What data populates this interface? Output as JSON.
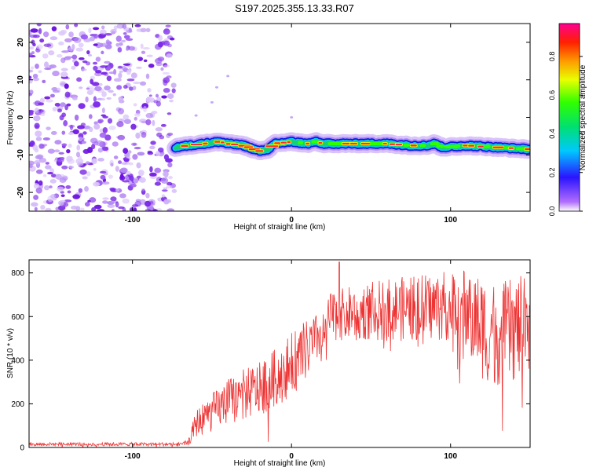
{
  "title": "S197.2025.355.13.33.R07",
  "chart_data": [
    {
      "type": "heatmap",
      "xlabel": "Height of straight line (km)",
      "ylabel": "Frequency (Hz)",
      "xlim": [
        -165,
        150
      ],
      "ylim": [
        -25,
        25
      ],
      "xticks": [
        -100,
        0,
        100
      ],
      "yticks": [
        -20,
        -10,
        0,
        10,
        20
      ],
      "noise_region_x": [
        -165,
        -73
      ],
      "noise_points_approx": 600,
      "signal_track": {
        "x": [
          -73,
          -65,
          -55,
          -45,
          -40,
          -30,
          -20,
          -15,
          -10,
          0,
          10,
          15,
          20,
          40,
          60,
          75,
          85,
          90,
          95,
          110,
          130,
          150
        ],
        "frequency": [
          -8,
          -7.5,
          -7,
          -6.5,
          -7,
          -7.5,
          -9,
          -8.5,
          -7,
          -6.5,
          -7,
          -6.5,
          -7,
          -7,
          -7,
          -7.5,
          -7.5,
          -7,
          -8,
          -7.5,
          -8,
          -8.5
        ]
      },
      "colorbar": {
        "label": "Normalized spectral amplitude",
        "ticks": [
          "0.0",
          "0.2",
          "0.4",
          "0.6",
          "0.8"
        ],
        "range": [
          0,
          0.97
        ]
      }
    },
    {
      "type": "line",
      "xlabel": "Height of straight line (km)",
      "ylabel": "SNR (10 * v/v)",
      "xlim": [
        -165,
        150
      ],
      "ylim": [
        0,
        860
      ],
      "xticks": [
        -100,
        0,
        100
      ],
      "yticks": [
        0,
        200,
        400,
        600,
        800
      ],
      "series": [
        {
          "name": "SNR",
          "color": "#ee3333",
          "envelope_x": [
            -165,
            -70,
            -65,
            -60,
            -50,
            -40,
            -30,
            -20,
            -10,
            0,
            10,
            15,
            20,
            25,
            40,
            60,
            80,
            100,
            110,
            120,
            130,
            140,
            150
          ],
          "envelope_mean": [
            15,
            15,
            20,
            110,
            160,
            210,
            240,
            270,
            320,
            380,
            450,
            480,
            560,
            600,
            620,
            630,
            640,
            650,
            620,
            550,
            520,
            540,
            570
          ],
          "envelope_noise": [
            10,
            10,
            15,
            80,
            110,
            130,
            150,
            150,
            170,
            180,
            170,
            160,
            120,
            140,
            160,
            180,
            190,
            200,
            250,
            300,
            300,
            300,
            280
          ],
          "peak_value": 850,
          "peak_x": 30
        }
      ]
    }
  ],
  "colors": {
    "line": "#ee3333",
    "noise_purple": "#7a1fe0",
    "track_outer": "#0a18e0",
    "track_mid": "#18d070",
    "track_core": "#ff2a2a"
  }
}
